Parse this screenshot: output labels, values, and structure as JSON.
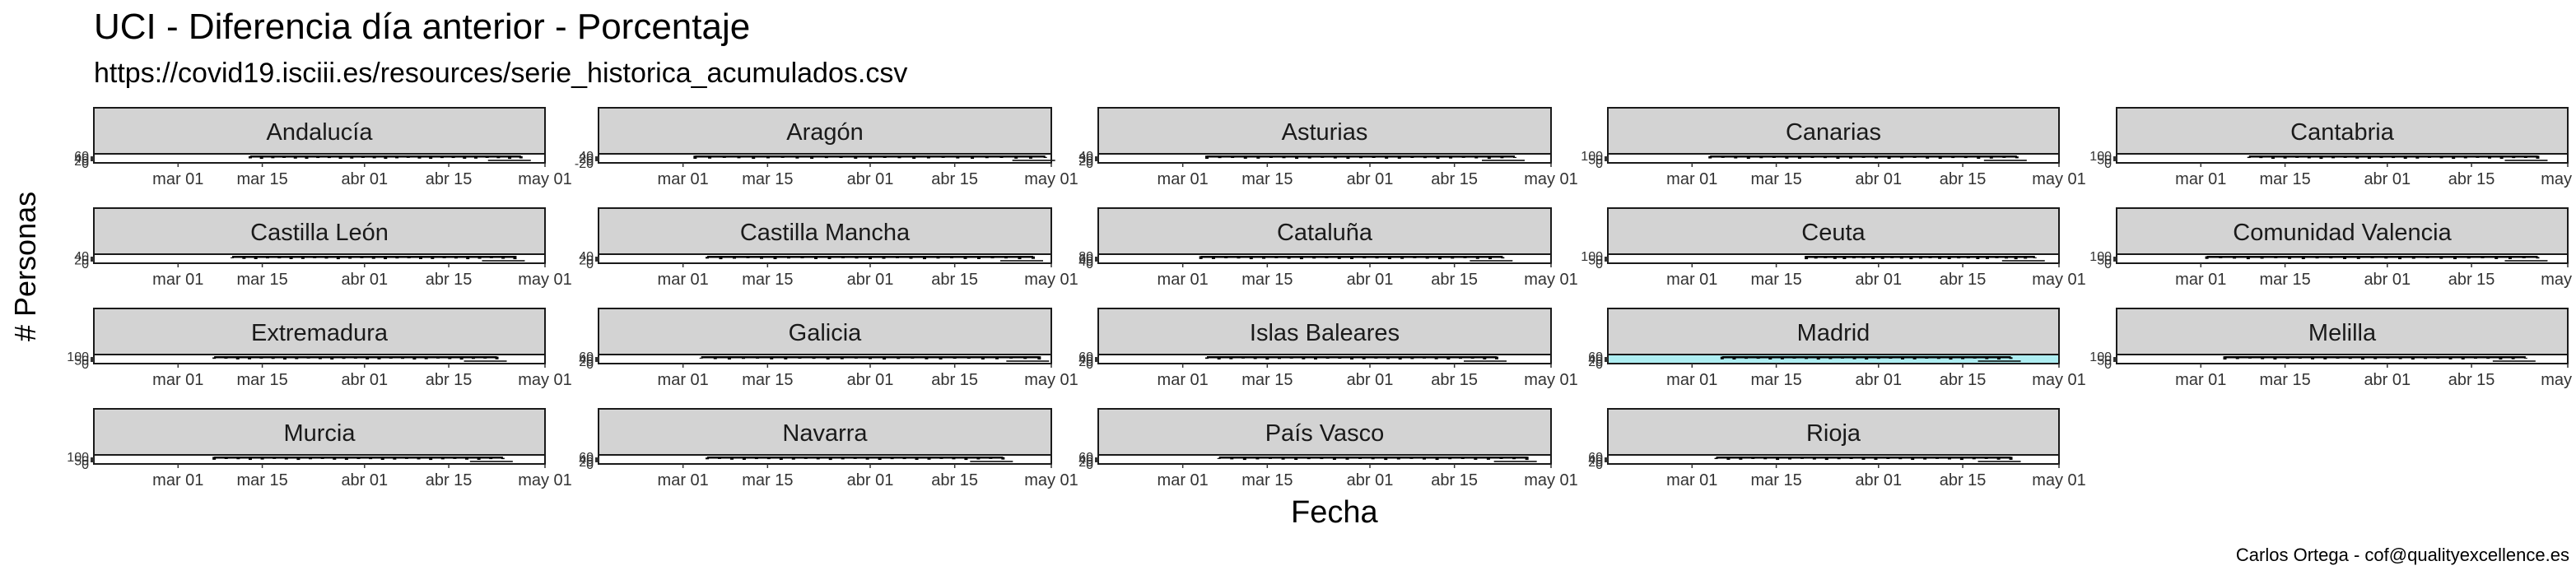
{
  "header": {
    "title": "UCI - Diferencia día anterior - Porcentaje",
    "subtitle": "https://covid19.isciii.es/resources/serie_historica_acumulados.csv"
  },
  "footer": {
    "caption": "Carlos Ortega - cof@qualityexcellence.es"
  },
  "colors": {
    "strip_fill": "#d3d3d3",
    "panel_border": "#1a1a1a",
    "series_line": "#000000",
    "madrid_band": "#aeeef2"
  },
  "chart_data": {
    "type": "line",
    "facet": "wrap",
    "title": "UCI - Diferencia día anterior - Porcentaje",
    "subtitle": "https://covid19.isciii.es/resources/serie_historica_acumulados.csv",
    "xlabel": "Fecha",
    "ylabel": "# Personas",
    "x_ticks": [
      "mar 01",
      "mar 15",
      "abr 01",
      "abr 15",
      "may 01"
    ],
    "x_tick_days": [
      14,
      28,
      45,
      59,
      75
    ],
    "xlim_days": [
      0,
      75
    ],
    "panels": [
      {
        "name": "Andalucía",
        "y_ticks": [
          "60",
          "40",
          "20",
          "0"
        ],
        "start": 26,
        "end": 71,
        "band": false
      },
      {
        "name": "Aragón",
        "y_ticks": [
          "40",
          "20",
          "0",
          "-20"
        ],
        "start": 16,
        "end": 74,
        "band": false
      },
      {
        "name": "Asturias",
        "y_ticks": [
          "40",
          "30",
          "20",
          "0"
        ],
        "start": 18,
        "end": 69,
        "band": false
      },
      {
        "name": "Canarias",
        "y_ticks": [
          "100",
          "50",
          "0"
        ],
        "start": 17,
        "end": 68,
        "band": false
      },
      {
        "name": "Cantabria",
        "y_ticks": [
          "100",
          "50",
          "0"
        ],
        "start": 22,
        "end": 70,
        "band": false
      },
      {
        "name": "Castilla León",
        "y_ticks": [
          "40",
          "20",
          "0"
        ],
        "start": 23,
        "end": 70,
        "band": false
      },
      {
        "name": "Castilla Mancha",
        "y_ticks": [
          "40",
          "20",
          "0"
        ],
        "start": 18,
        "end": 72,
        "band": false
      },
      {
        "name": "Cataluña",
        "y_ticks": [
          "80",
          "60",
          "40",
          "0"
        ],
        "start": 17,
        "end": 67,
        "band": false
      },
      {
        "name": "Ceuta",
        "y_ticks": [
          "100",
          "50",
          "0"
        ],
        "start": 33,
        "end": 71,
        "band": false
      },
      {
        "name": "Comunidad Valencia",
        "y_ticks": [
          "100",
          "50",
          "0"
        ],
        "start": 15,
        "end": 70,
        "band": false
      },
      {
        "name": "Extremadura",
        "y_ticks": [
          "100",
          "50",
          "0"
        ],
        "start": 20,
        "end": 67,
        "band": false
      },
      {
        "name": "Galicia",
        "y_ticks": [
          "60",
          "40",
          "20",
          "0"
        ],
        "start": 17,
        "end": 73,
        "band": false
      },
      {
        "name": "Islas Baleares",
        "y_ticks": [
          "60",
          "40",
          "20",
          "0"
        ],
        "start": 18,
        "end": 66,
        "band": false
      },
      {
        "name": "Madrid",
        "y_ticks": [
          "60",
          "40",
          "20",
          "0"
        ],
        "start": 19,
        "end": 67,
        "band": true
      },
      {
        "name": "Melilla",
        "y_ticks": [
          "100",
          "50",
          "0"
        ],
        "start": 18,
        "end": 68,
        "band": false
      },
      {
        "name": "Murcia",
        "y_ticks": [
          "100",
          "50",
          "0"
        ],
        "start": 20,
        "end": 68,
        "band": false
      },
      {
        "name": "Navarra",
        "y_ticks": [
          "60",
          "40",
          "20",
          "0"
        ],
        "start": 18,
        "end": 67,
        "band": false
      },
      {
        "name": "País Vasco",
        "y_ticks": [
          "60",
          "40",
          "20",
          "0"
        ],
        "start": 20,
        "end": 71,
        "band": false
      },
      {
        "name": "Rioja",
        "y_ticks": [
          "60",
          "40",
          "20",
          "0"
        ],
        "start": 18,
        "end": 67,
        "band": false
      }
    ]
  }
}
